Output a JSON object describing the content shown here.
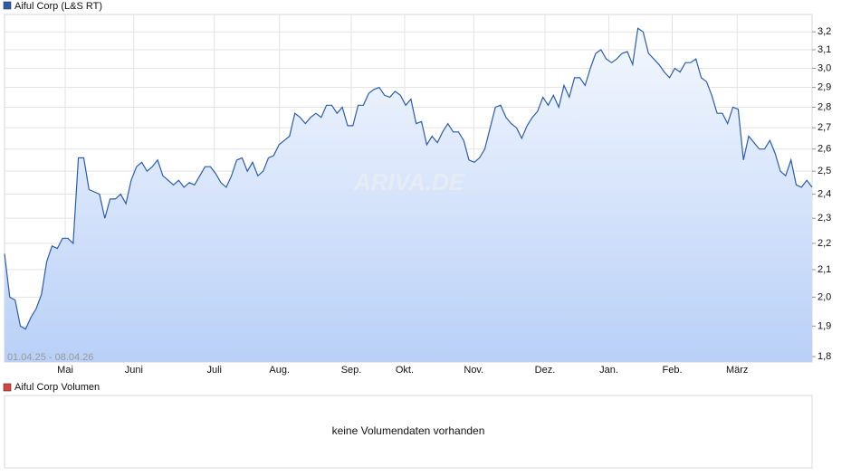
{
  "chart_data": {
    "type": "line",
    "date_range": "01.04.25 - 08.04.26",
    "watermark": "ARIVA.DE",
    "log": true,
    "grid": true,
    "series": [
      {
        "name": "Aiful Corp (L&S RT)",
        "color": "#2a5db0",
        "values": [
          2.16,
          2.0,
          1.99,
          1.9,
          1.89,
          1.93,
          1.96,
          2.01,
          2.13,
          2.19,
          2.18,
          2.22,
          2.22,
          2.2,
          2.56,
          2.56,
          2.42,
          2.41,
          2.4,
          2.3,
          2.38,
          2.38,
          2.4,
          2.36,
          2.46,
          2.52,
          2.54,
          2.5,
          2.52,
          2.55,
          2.48,
          2.46,
          2.44,
          2.46,
          2.43,
          2.45,
          2.44,
          2.48,
          2.52,
          2.52,
          2.49,
          2.45,
          2.43,
          2.48,
          2.55,
          2.56,
          2.5,
          2.54,
          2.48,
          2.5,
          2.56,
          2.57,
          2.62,
          2.64,
          2.66,
          2.77,
          2.75,
          2.72,
          2.75,
          2.77,
          2.75,
          2.81,
          2.81,
          2.77,
          2.8,
          2.71,
          2.71,
          2.81,
          2.81,
          2.87,
          2.89,
          2.9,
          2.86,
          2.85,
          2.88,
          2.86,
          2.81,
          2.84,
          2.72,
          2.73,
          2.62,
          2.66,
          2.63,
          2.68,
          2.72,
          2.68,
          2.68,
          2.64,
          2.55,
          2.54,
          2.56,
          2.6,
          2.7,
          2.8,
          2.81,
          2.75,
          2.72,
          2.7,
          2.65,
          2.71,
          2.75,
          2.78,
          2.85,
          2.81,
          2.86,
          2.8,
          2.91,
          2.85,
          2.95,
          2.95,
          2.91,
          3.0,
          3.08,
          3.1,
          3.05,
          3.03,
          3.05,
          3.08,
          3.09,
          3.02,
          3.22,
          3.2,
          3.08,
          3.05,
          3.02,
          2.98,
          2.95,
          3.0,
          2.98,
          3.03,
          3.03,
          3.05,
          2.95,
          2.93,
          2.86,
          2.77,
          2.77,
          2.72,
          2.8,
          2.79,
          2.55,
          2.66,
          2.63,
          2.6,
          2.6,
          2.64,
          2.58,
          2.5,
          2.48,
          2.55,
          2.44,
          2.43,
          2.46,
          2.43
        ]
      }
    ],
    "xlim": [
      0,
      153
    ],
    "xticks": [
      {
        "value": 11.5,
        "label": "Mai"
      },
      {
        "value": 24.5,
        "label": "Juni"
      },
      {
        "value": 39.75,
        "label": "Juli"
      },
      {
        "value": 52.1,
        "label": "Aug."
      },
      {
        "value": 65.7,
        "label": "Sep."
      },
      {
        "value": 75.8,
        "label": "Okt."
      },
      {
        "value": 88.9,
        "label": "Nov."
      },
      {
        "value": 102.4,
        "label": "Dez."
      },
      {
        "value": 114.5,
        "label": "Jan."
      },
      {
        "value": 126.5,
        "label": "Feb."
      },
      {
        "value": 138.8,
        "label": "März"
      }
    ],
    "ylim": [
      1.783,
      3.3
    ],
    "yticks": [
      {
        "value": 1.8,
        "label": "1,8"
      },
      {
        "value": 1.9,
        "label": "1,9"
      },
      {
        "value": 2.0,
        "label": "2,0"
      },
      {
        "value": 2.1,
        "label": "2,1"
      },
      {
        "value": 2.2,
        "label": "2,2"
      },
      {
        "value": 2.3,
        "label": "2,3"
      },
      {
        "value": 2.4,
        "label": "2,4"
      },
      {
        "value": 2.5,
        "label": "2,5"
      },
      {
        "value": 2.6,
        "label": "2,6"
      },
      {
        "value": 2.7,
        "label": "2,7"
      },
      {
        "value": 2.8,
        "label": "2,8"
      },
      {
        "value": 2.9,
        "label": "2,9"
      },
      {
        "value": 3.0,
        "label": "3,0"
      },
      {
        "value": 3.1,
        "label": "3,1"
      },
      {
        "value": 3.2,
        "label": "3,2"
      }
    ]
  },
  "volume_panel": {
    "title": "Aiful Corp Volumen",
    "color": "#d9443c",
    "message": "keine Volumendaten vorhanden"
  }
}
